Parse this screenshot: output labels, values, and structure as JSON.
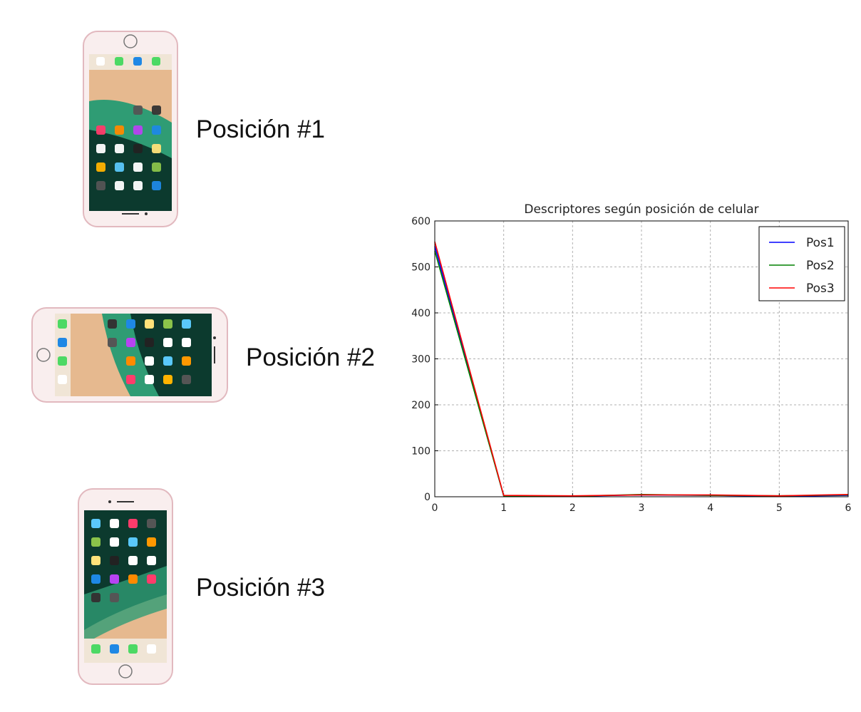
{
  "phones": [
    {
      "label": "Posición #1",
      "orientation": "portrait-dock-top"
    },
    {
      "label": "Posición #2",
      "orientation": "landscape"
    },
    {
      "label": "Posición #3",
      "orientation": "portrait"
    }
  ],
  "colors": {
    "phone_body": "#f9eeee",
    "phone_rim": "#e2b9bf",
    "sand": "#e6b98f",
    "sea": "#2f9c74",
    "screen_dark": "#0c3a2e"
  },
  "chart_data": {
    "type": "line",
    "title": "Descriptores según posición de celular",
    "xlabel": "",
    "ylabel": "",
    "xlim": [
      0,
      6
    ],
    "ylim": [
      0,
      600
    ],
    "xticks": [
      0,
      1,
      2,
      3,
      4,
      5,
      6
    ],
    "yticks": [
      0,
      100,
      200,
      300,
      400,
      500,
      600
    ],
    "grid": true,
    "legend_position": "top-right",
    "x": [
      0,
      1,
      2,
      3,
      4,
      5,
      6
    ],
    "series": [
      {
        "name": "Pos1",
        "color": "#0000ff",
        "values": [
          545,
          2,
          1,
          4,
          3,
          1,
          3
        ]
      },
      {
        "name": "Pos2",
        "color": "#008000",
        "values": [
          535,
          2,
          1,
          5,
          3,
          2,
          4
        ]
      },
      {
        "name": "Pos3",
        "color": "#ff0000",
        "values": [
          555,
          3,
          2,
          4,
          4,
          2,
          5
        ]
      }
    ]
  }
}
